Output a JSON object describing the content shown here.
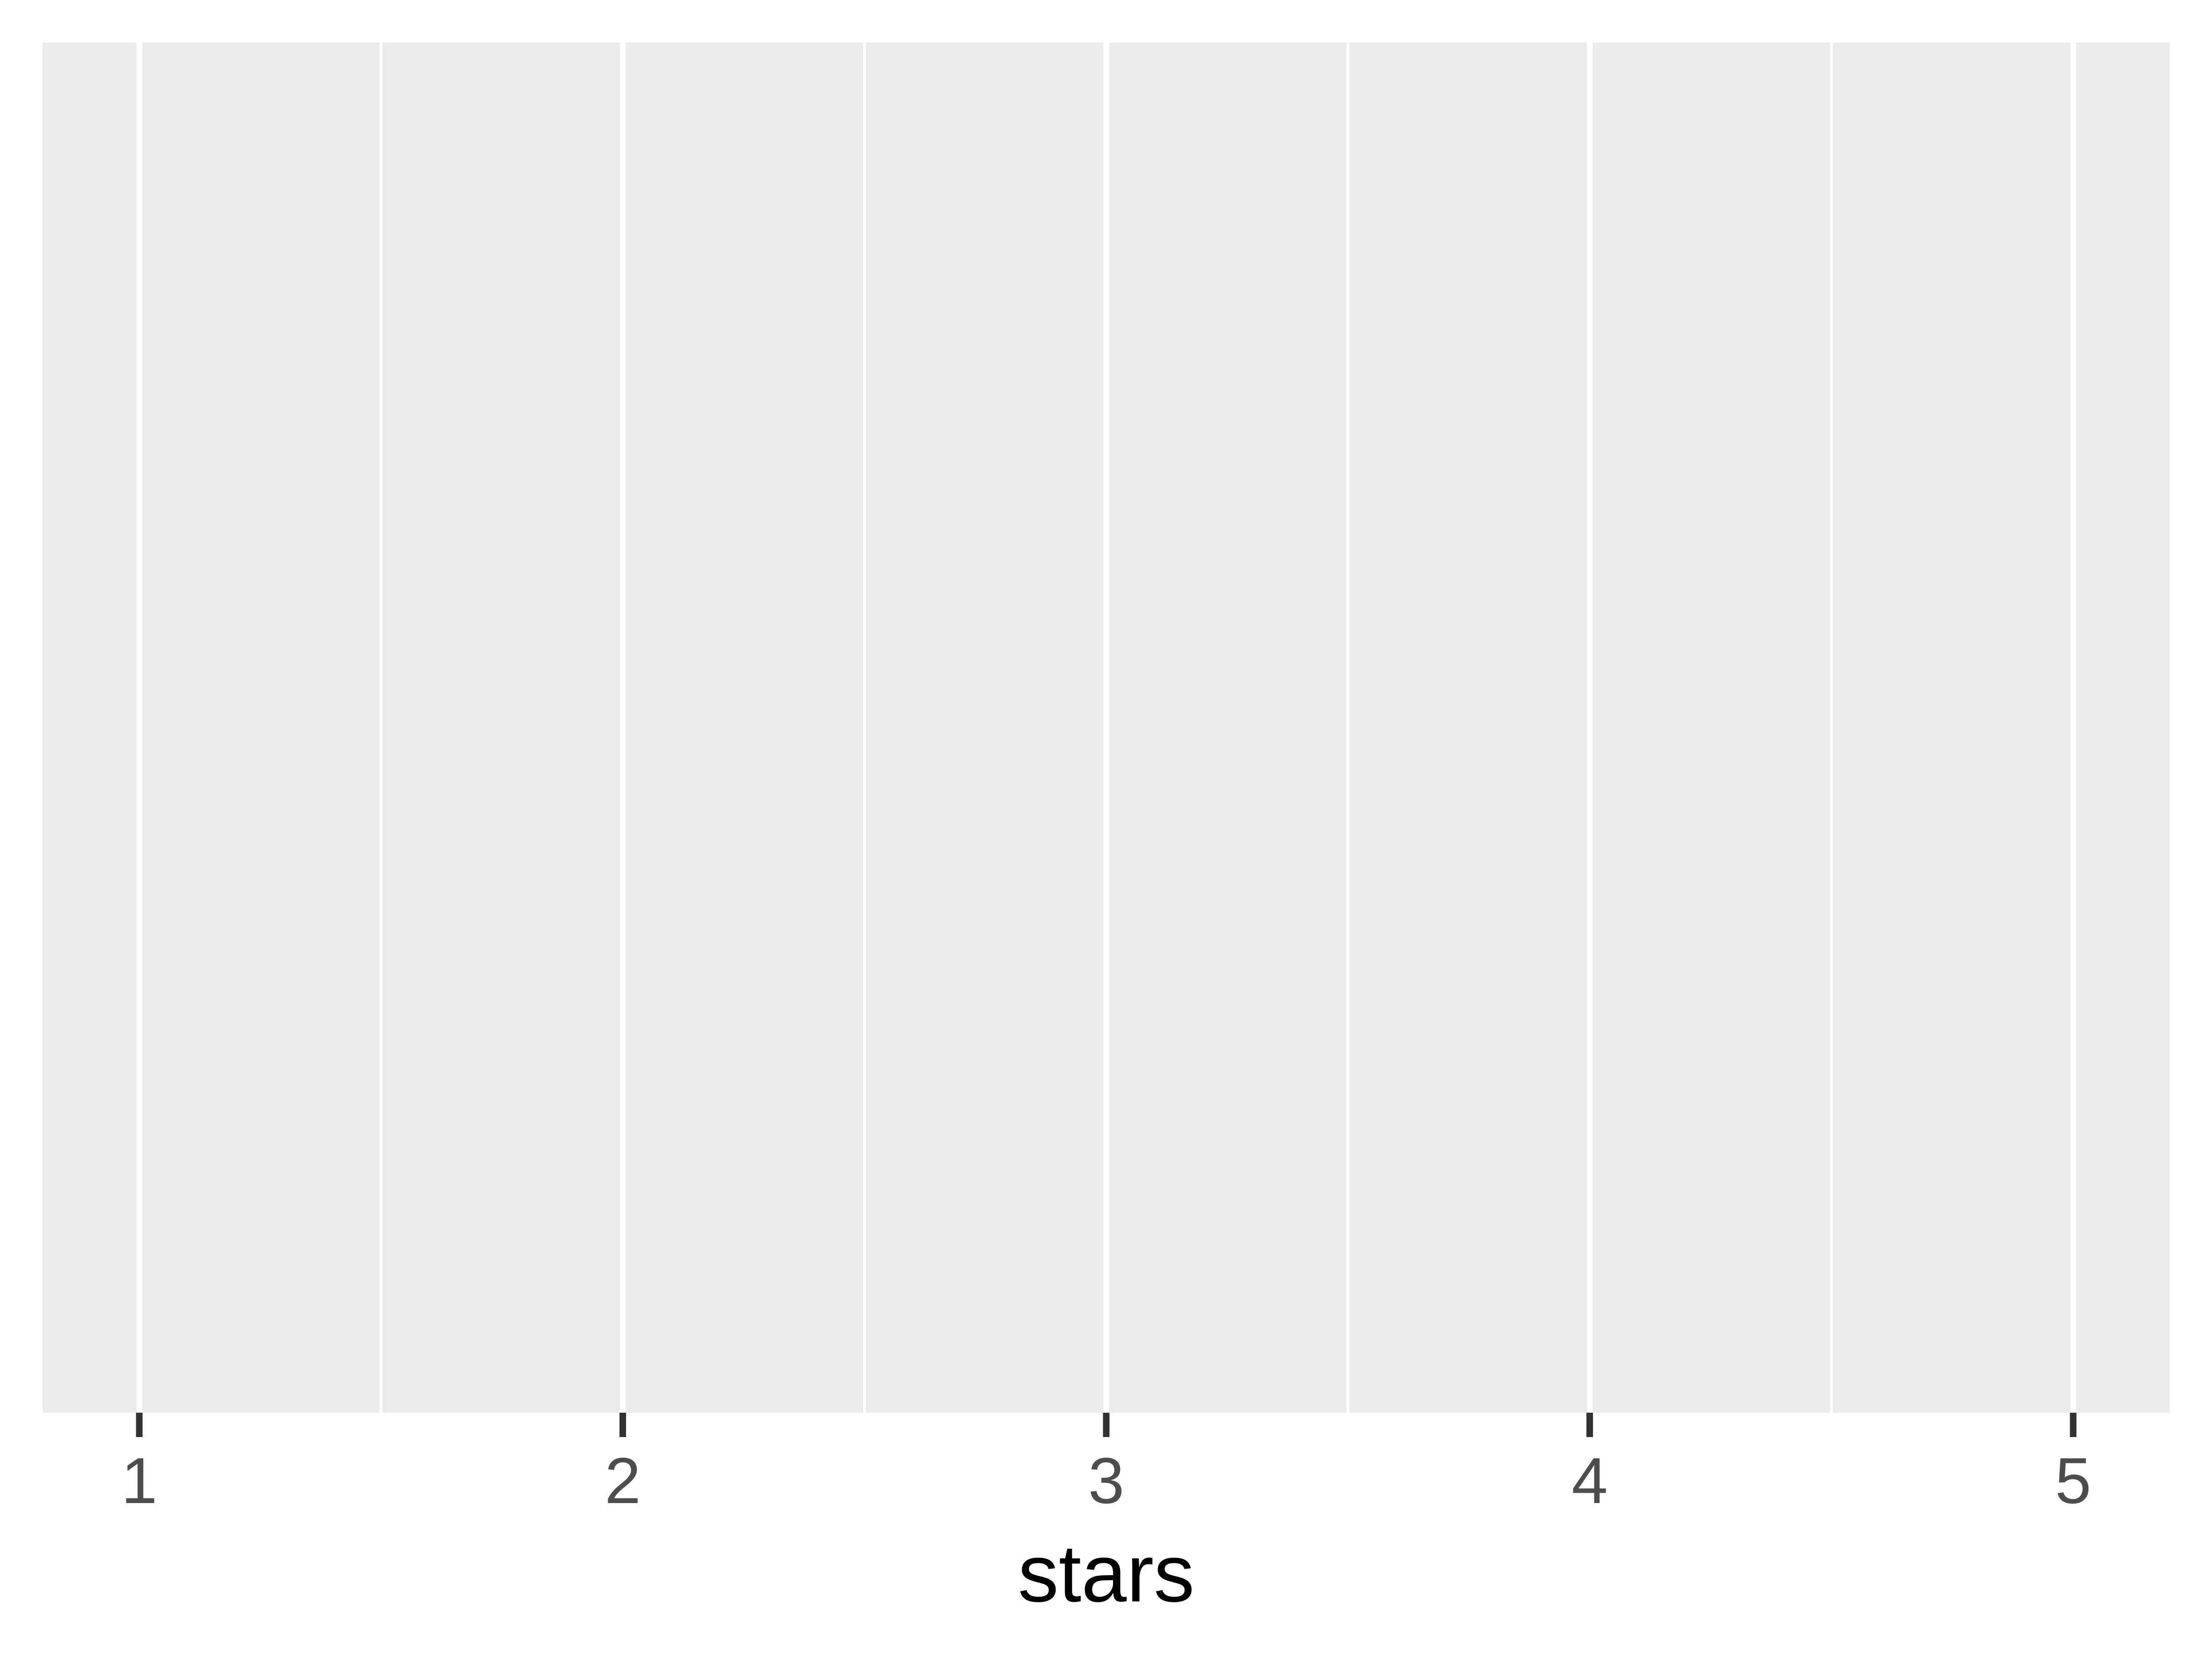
{
  "chart_data": {
    "type": "scatter",
    "title": "",
    "xlabel": "stars",
    "ylabel": "",
    "x_ticks": [
      1,
      2,
      3,
      4,
      5
    ],
    "x_tick_labels": [
      "1",
      "2",
      "3",
      "4",
      "5"
    ],
    "y_ticks": [],
    "xlim": [
      0.8,
      5.2
    ],
    "series": [],
    "grid": true,
    "legend": "none",
    "panel_background": "#EBEBEB",
    "gridline_color": "#FFFFFF",
    "tick_color": "#333333",
    "tick_label_color": "#4D4D4D",
    "axis_title_color": "#000000"
  }
}
